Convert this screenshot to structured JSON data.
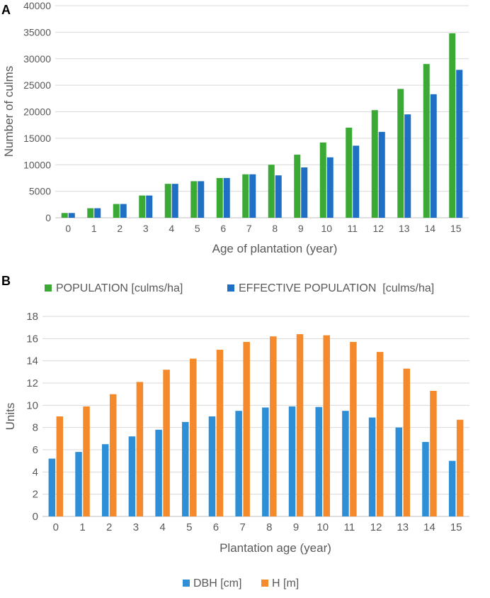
{
  "chart_data": [
    {
      "panel_label": "A",
      "type": "bar",
      "title": "",
      "xlabel": "Age of plantation (year)",
      "ylabel": "Number of culms",
      "ylim": [
        0,
        40000
      ],
      "yticks": [
        "0",
        "5000",
        "10000",
        "15000",
        "20000",
        "25000",
        "30000",
        "35000",
        "40000"
      ],
      "categories": [
        "0",
        "1",
        "2",
        "3",
        "4",
        "5",
        "6",
        "7",
        "8",
        "9",
        "10",
        "11",
        "12",
        "13",
        "14",
        "15"
      ],
      "grid": true,
      "legend_position": "bottom",
      "series": [
        {
          "name": "POPULATION [culms/ha]",
          "color": "#3aaa35",
          "values": [
            900,
            1800,
            2600,
            4200,
            6400,
            6900,
            7500,
            8200,
            10000,
            11900,
            14200,
            17000,
            20300,
            24300,
            29000,
            34800
          ]
        },
        {
          "name": "EFFECTIVE POPULATION  [culms/ha]",
          "color": "#1f6fc5",
          "values": [
            900,
            1800,
            2600,
            4200,
            6400,
            6900,
            7500,
            8200,
            8000,
            9500,
            11400,
            13600,
            16200,
            19500,
            23300,
            27900
          ]
        }
      ]
    },
    {
      "panel_label": "B",
      "type": "bar",
      "title": "",
      "xlabel": "Plantation age (year)",
      "ylabel": "Units",
      "ylim": [
        0,
        18
      ],
      "yticks": [
        "0",
        "2",
        "4",
        "6",
        "8",
        "10",
        "12",
        "14",
        "16",
        "18"
      ],
      "categories": [
        "0",
        "1",
        "2",
        "3",
        "4",
        "5",
        "6",
        "7",
        "8",
        "9",
        "10",
        "11",
        "12",
        "13",
        "14",
        "15"
      ],
      "grid": true,
      "legend_position": "bottom",
      "series": [
        {
          "name": "DBH [cm]",
          "color": "#2e8fd6",
          "values": [
            5.2,
            5.8,
            6.5,
            7.2,
            7.8,
            8.5,
            9.0,
            9.5,
            9.8,
            9.9,
            9.85,
            9.5,
            8.9,
            8.0,
            6.7,
            5.0
          ]
        },
        {
          "name": "H [m]",
          "color": "#f58a2c",
          "values": [
            9.0,
            9.9,
            11.0,
            12.1,
            13.2,
            14.2,
            15.0,
            15.7,
            16.2,
            16.4,
            16.3,
            15.7,
            14.8,
            13.3,
            11.3,
            8.7
          ]
        }
      ]
    }
  ]
}
